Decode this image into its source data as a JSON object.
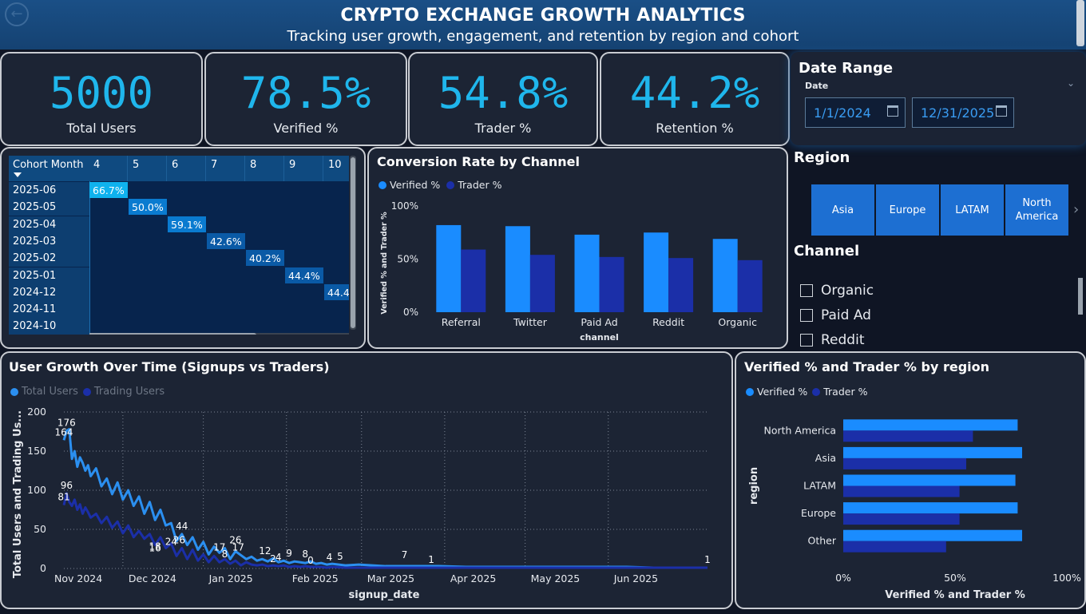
{
  "header": {
    "title": "CRYPTO EXCHANGE GROWTH ANALYTICS",
    "subtitle": "Tracking user growth, engagement, and retention by region and cohort"
  },
  "kpis": [
    {
      "value": "5000",
      "label": "Total Users"
    },
    {
      "value": "78.5%",
      "label": "Verified %"
    },
    {
      "value": "54.8%",
      "label": "Trader %"
    },
    {
      "value": "44.2%",
      "label": "Retention %"
    }
  ],
  "date_range": {
    "title": "Date Range",
    "label": "Date",
    "start": "1/1/2024",
    "end": "12/31/2025"
  },
  "region_slicer": {
    "title": "Region",
    "tiles": [
      "Asia",
      "Europe",
      "LATAM",
      "North America"
    ]
  },
  "channel_slicer": {
    "title": "Channel",
    "options": [
      "Organic",
      "Paid Ad",
      "Reddit"
    ]
  },
  "cohort_matrix": {
    "corner_label": "Cohort Month",
    "columns": [
      "4",
      "5",
      "6",
      "7",
      "8",
      "9",
      "10"
    ],
    "rows": [
      {
        "label": "2025-06",
        "col": 0,
        "value": "66.7%"
      },
      {
        "label": "2025-05",
        "col": 1,
        "value": "50.0%"
      },
      {
        "label": "2025-04",
        "col": 2,
        "value": "59.1%"
      },
      {
        "label": "2025-03",
        "col": 3,
        "value": "42.6%"
      },
      {
        "label": "2025-02",
        "col": 4,
        "value": "40.2%"
      },
      {
        "label": "2025-01",
        "col": 5,
        "value": "44.4%"
      },
      {
        "label": "2024-12",
        "col": 6,
        "value": "44.4"
      },
      {
        "label": "2024-11",
        "col": -1,
        "value": ""
      },
      {
        "label": "2024-10",
        "col": -1,
        "value": ""
      }
    ],
    "colors": {
      "high": "#0fb2ee",
      "mid": "#0a7bd0",
      "low": "#0a5aa6"
    }
  },
  "chart_data": [
    {
      "type": "bar",
      "title": "Conversion Rate by Channel",
      "xlabel": "channel",
      "ylabel": "Verified % and Trader %",
      "categories": [
        "Referral",
        "Twitter",
        "Paid Ad",
        "Reddit",
        "Organic"
      ],
      "series": [
        {
          "name": "Verified %",
          "color": "#1a8cff",
          "values": [
            82,
            81,
            73,
            75,
            69
          ]
        },
        {
          "name": "Trader %",
          "color": "#1b2fa8",
          "values": [
            59,
            54,
            52,
            51,
            49
          ]
        }
      ],
      "ylim": [
        0,
        100
      ],
      "yticks": [
        "0%",
        "50%",
        "100%"
      ],
      "legend": "top-left"
    },
    {
      "type": "line",
      "title": "User Growth Over Time (Signups vs Traders)",
      "xlabel": "signup_date",
      "ylabel": "Total Users and Trading Us...",
      "ylim": [
        0,
        200
      ],
      "yticks": [
        0,
        50,
        100,
        150,
        200
      ],
      "xticks": [
        "Nov 2024",
        "Dec 2024",
        "Jan 2025",
        "Feb 2025",
        "Mar 2025",
        "Apr 2025",
        "May 2025",
        "Jun 2025"
      ],
      "grid": true,
      "legend": "top-left",
      "series": [
        {
          "name": "Total Users",
          "color": "#2b8ff0",
          "x": [
            0,
            1,
            2,
            3,
            4,
            5,
            6,
            7,
            8,
            9,
            10,
            12,
            14,
            16,
            18,
            20,
            22,
            24,
            26,
            28,
            30,
            32,
            34,
            36,
            38,
            40,
            42,
            44,
            46,
            48,
            50,
            52,
            54,
            56,
            58,
            60,
            62,
            64,
            66,
            68,
            70,
            72,
            74,
            76,
            78,
            80,
            82,
            84,
            86,
            88,
            90,
            92,
            94,
            96,
            98,
            100,
            105,
            110,
            115,
            120,
            130,
            140,
            150,
            160,
            170,
            180,
            190,
            200,
            210,
            220,
            230,
            240
          ],
          "y": [
            164,
            176,
            178,
            140,
            150,
            130,
            142,
            135,
            125,
            132,
            118,
            128,
            105,
            115,
            95,
            110,
            88,
            100,
            80,
            92,
            70,
            85,
            62,
            75,
            55,
            58,
            35,
            44,
            30,
            40,
            24,
            34,
            18,
            28,
            20,
            26,
            12,
            22,
            17,
            12,
            15,
            10,
            12,
            9,
            13,
            8,
            10,
            7,
            9,
            8,
            7,
            9,
            6,
            7,
            5,
            6,
            4,
            5,
            4,
            3,
            3,
            3,
            2,
            2,
            2,
            2,
            2,
            2,
            2,
            1,
            1,
            1
          ]
        },
        {
          "name": "Trading Users",
          "color": "#1b2fa8",
          "x": [
            0,
            1,
            2,
            3,
            4,
            5,
            6,
            7,
            8,
            9,
            10,
            12,
            14,
            16,
            18,
            20,
            22,
            24,
            26,
            28,
            30,
            32,
            34,
            36,
            38,
            40,
            42,
            44,
            46,
            48,
            50,
            52,
            54,
            56,
            58,
            60,
            62,
            64,
            66,
            68,
            70,
            72,
            74,
            76,
            78,
            80,
            82,
            84,
            86,
            88,
            90,
            92,
            94,
            96,
            98,
            100,
            105,
            110,
            115,
            120,
            130,
            140,
            150,
            160,
            170,
            180,
            190,
            200,
            210,
            220,
            230,
            240
          ],
          "y": [
            81,
            96,
            85,
            80,
            88,
            75,
            82,
            70,
            78,
            72,
            65,
            70,
            58,
            66,
            52,
            60,
            45,
            55,
            40,
            48,
            38,
            44,
            30,
            40,
            26,
            32,
            16,
            26,
            12,
            24,
            10,
            18,
            8,
            16,
            8,
            12,
            6,
            10,
            4,
            8,
            5,
            4,
            5,
            3,
            4,
            3,
            4,
            2,
            3,
            2,
            3,
            2,
            2,
            2,
            1,
            2,
            1,
            1,
            1,
            1,
            1,
            1,
            1,
            1,
            1,
            1,
            1,
            1,
            1,
            1,
            1,
            1
          ]
        }
      ],
      "data_labels": [
        {
          "x": 1,
          "y": 176,
          "text": "176"
        },
        {
          "x": 0,
          "y": 164,
          "text": "164"
        },
        {
          "x": 1,
          "y": 96,
          "text": "96"
        },
        {
          "x": 0,
          "y": 81,
          "text": "81"
        },
        {
          "x": 34,
          "y": 18,
          "text": "18"
        },
        {
          "x": 34,
          "y": 16,
          "text": "16"
        },
        {
          "x": 40,
          "y": 24,
          "text": "24"
        },
        {
          "x": 44,
          "y": 44,
          "text": "44"
        },
        {
          "x": 43,
          "y": 26,
          "text": "26"
        },
        {
          "x": 58,
          "y": 17,
          "text": "17"
        },
        {
          "x": 64,
          "y": 26,
          "text": "26"
        },
        {
          "x": 60,
          "y": 8,
          "text": "8"
        },
        {
          "x": 65,
          "y": 17,
          "text": "17"
        },
        {
          "x": 75,
          "y": 12,
          "text": "12"
        },
        {
          "x": 78,
          "y": 2,
          "text": "2"
        },
        {
          "x": 80,
          "y": 4,
          "text": "4"
        },
        {
          "x": 84,
          "y": 9,
          "text": "9"
        },
        {
          "x": 90,
          "y": 8,
          "text": "8"
        },
        {
          "x": 92,
          "y": 0,
          "text": "0"
        },
        {
          "x": 99,
          "y": 4,
          "text": "4"
        },
        {
          "x": 103,
          "y": 5,
          "text": "5"
        },
        {
          "x": 127,
          "y": 7,
          "text": "7"
        },
        {
          "x": 137,
          "y": 1,
          "text": "1"
        },
        {
          "x": 240,
          "y": 1,
          "text": "1"
        }
      ]
    },
    {
      "type": "bar",
      "orientation": "horizontal",
      "title": "Verified % and Trader % by region",
      "xlabel": "Verified % and Trader %",
      "ylabel": "region",
      "categories": [
        "North America",
        "Asia",
        "LATAM",
        "Europe",
        "Other"
      ],
      "series": [
        {
          "name": "Verified %",
          "color": "#1a8cff",
          "values": [
            78,
            80,
            77,
            78,
            80
          ]
        },
        {
          "name": "Trader %",
          "color": "#1b2fa8",
          "values": [
            58,
            55,
            52,
            52,
            46
          ]
        }
      ],
      "xlim": [
        0,
        100
      ],
      "xticks": [
        "0%",
        "50%",
        "100%"
      ],
      "legend": "top-left"
    }
  ]
}
